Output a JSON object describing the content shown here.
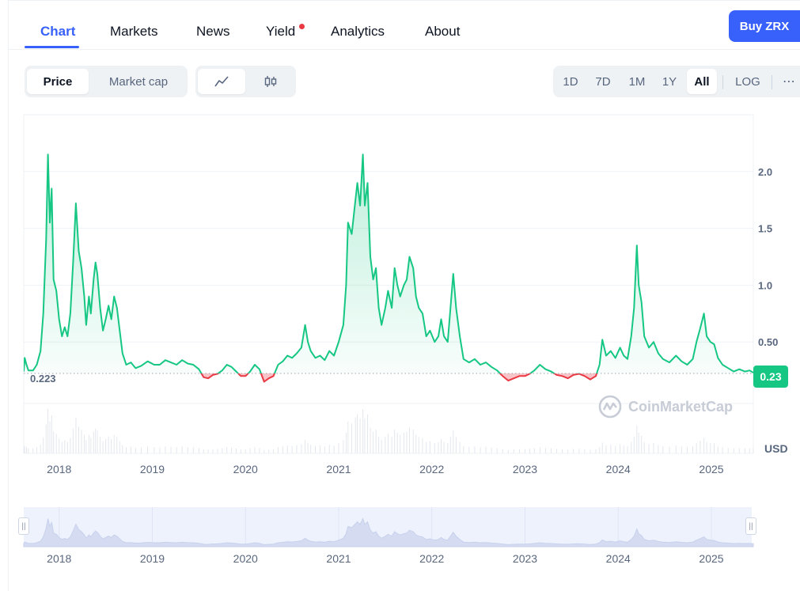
{
  "tabs": [
    {
      "label": "Chart",
      "active": true
    },
    {
      "label": "Markets"
    },
    {
      "label": "News"
    },
    {
      "label": "Yield"
    },
    {
      "label": "Analytics"
    },
    {
      "label": "About"
    }
  ],
  "buy_button": "Buy ZRX",
  "metric_toggle": {
    "options": [
      "Price",
      "Market cap"
    ],
    "selected": "Price"
  },
  "chart_style_toggle": {
    "options": [
      "line-chart-icon",
      "candlestick-icon"
    ],
    "selected": "line-chart-icon"
  },
  "range_toggle": {
    "options": [
      "1D",
      "7D",
      "1M",
      "1Y",
      "All"
    ],
    "selected": "All",
    "log_label": "LOG",
    "more": "⋯"
  },
  "colors": {
    "up": "#16c784",
    "down": "#ea3943",
    "accent": "#3861fb"
  },
  "watermark": "CoinMarketCap",
  "currency_label": "USD",
  "current_price_badge": "0.23",
  "reference_label": "0.223",
  "chart_data": {
    "type": "area",
    "series_name": "",
    "reference_value": 0.223,
    "ylim": [
      -0.48,
      2.5
    ],
    "yticks": [
      0.5,
      1.0,
      1.5,
      2.0
    ],
    "ytick_labels": [
      "0.50",
      "1.0",
      "1.5",
      "2.0"
    ],
    "xtick_labels": [
      "2018",
      "2019",
      "2020",
      "2021",
      "2022",
      "2023",
      "2024",
      "2025"
    ],
    "xlim": [
      2017.62,
      2025.45
    ],
    "grid": true,
    "points": [
      [
        2017.62,
        0.24
      ],
      [
        2017.63,
        0.36
      ],
      [
        2017.65,
        0.3
      ],
      [
        2017.67,
        0.25
      ],
      [
        2017.72,
        0.25
      ],
      [
        2017.76,
        0.3
      ],
      [
        2017.8,
        0.42
      ],
      [
        2017.83,
        0.75
      ],
      [
        2017.86,
        1.4
      ],
      [
        2017.88,
        2.15
      ],
      [
        2017.9,
        1.55
      ],
      [
        2017.92,
        1.85
      ],
      [
        2017.94,
        1.05
      ],
      [
        2017.97,
        0.95
      ],
      [
        2018.0,
        0.7
      ],
      [
        2018.03,
        0.55
      ],
      [
        2018.06,
        0.63
      ],
      [
        2018.09,
        0.55
      ],
      [
        2018.12,
        0.75
      ],
      [
        2018.15,
        1.2
      ],
      [
        2018.18,
        1.72
      ],
      [
        2018.21,
        1.3
      ],
      [
        2018.24,
        1.15
      ],
      [
        2018.27,
        0.9
      ],
      [
        2018.29,
        0.65
      ],
      [
        2018.32,
        0.9
      ],
      [
        2018.34,
        0.75
      ],
      [
        2018.37,
        1.05
      ],
      [
        2018.39,
        1.2
      ],
      [
        2018.41,
        1.1
      ],
      [
        2018.44,
        0.8
      ],
      [
        2018.47,
        0.6
      ],
      [
        2018.5,
        0.7
      ],
      [
        2018.53,
        0.82
      ],
      [
        2018.56,
        0.7
      ],
      [
        2018.59,
        0.9
      ],
      [
        2018.62,
        0.8
      ],
      [
        2018.65,
        0.6
      ],
      [
        2018.68,
        0.4
      ],
      [
        2018.72,
        0.3
      ],
      [
        2018.77,
        0.32
      ],
      [
        2018.82,
        0.27
      ],
      [
        2018.88,
        0.29
      ],
      [
        2018.95,
        0.33
      ],
      [
        2019.02,
        0.3
      ],
      [
        2019.08,
        0.3
      ],
      [
        2019.14,
        0.34
      ],
      [
        2019.2,
        0.32
      ],
      [
        2019.26,
        0.3
      ],
      [
        2019.32,
        0.34
      ],
      [
        2019.38,
        0.31
      ],
      [
        2019.44,
        0.3
      ],
      [
        2019.5,
        0.26
      ],
      [
        2019.55,
        0.19
      ],
      [
        2019.6,
        0.18
      ],
      [
        2019.65,
        0.21
      ],
      [
        2019.7,
        0.22
      ],
      [
        2019.75,
        0.25
      ],
      [
        2019.8,
        0.3
      ],
      [
        2019.85,
        0.28
      ],
      [
        2019.9,
        0.24
      ],
      [
        2019.95,
        0.2
      ],
      [
        2020.0,
        0.2
      ],
      [
        2020.05,
        0.24
      ],
      [
        2020.1,
        0.3
      ],
      [
        2020.15,
        0.26
      ],
      [
        2020.2,
        0.15
      ],
      [
        2020.25,
        0.18
      ],
      [
        2020.3,
        0.2
      ],
      [
        2020.35,
        0.3
      ],
      [
        2020.4,
        0.33
      ],
      [
        2020.45,
        0.38
      ],
      [
        2020.5,
        0.36
      ],
      [
        2020.55,
        0.4
      ],
      [
        2020.6,
        0.45
      ],
      [
        2020.64,
        0.65
      ],
      [
        2020.67,
        0.5
      ],
      [
        2020.7,
        0.42
      ],
      [
        2020.75,
        0.36
      ],
      [
        2020.8,
        0.38
      ],
      [
        2020.85,
        0.34
      ],
      [
        2020.9,
        0.42
      ],
      [
        2020.95,
        0.38
      ],
      [
        2021.0,
        0.5
      ],
      [
        2021.05,
        0.65
      ],
      [
        2021.08,
        1.0
      ],
      [
        2021.1,
        1.55
      ],
      [
        2021.14,
        1.45
      ],
      [
        2021.18,
        1.75
      ],
      [
        2021.2,
        1.9
      ],
      [
        2021.23,
        1.7
      ],
      [
        2021.26,
        2.15
      ],
      [
        2021.28,
        1.7
      ],
      [
        2021.31,
        1.9
      ],
      [
        2021.34,
        1.25
      ],
      [
        2021.37,
        1.05
      ],
      [
        2021.4,
        1.15
      ],
      [
        2021.43,
        0.8
      ],
      [
        2021.46,
        0.65
      ],
      [
        2021.5,
        0.8
      ],
      [
        2021.53,
        0.95
      ],
      [
        2021.57,
        0.8
      ],
      [
        2021.6,
        1.15
      ],
      [
        2021.63,
        1.0
      ],
      [
        2021.66,
        0.9
      ],
      [
        2021.7,
        1.0
      ],
      [
        2021.73,
        1.05
      ],
      [
        2021.76,
        1.25
      ],
      [
        2021.8,
        1.15
      ],
      [
        2021.83,
        0.9
      ],
      [
        2021.86,
        0.8
      ],
      [
        2021.9,
        0.75
      ],
      [
        2021.94,
        0.55
      ],
      [
        2021.98,
        0.6
      ],
      [
        2022.03,
        0.5
      ],
      [
        2022.07,
        0.55
      ],
      [
        2022.1,
        0.7
      ],
      [
        2022.13,
        0.55
      ],
      [
        2022.17,
        0.5
      ],
      [
        2022.2,
        0.8
      ],
      [
        2022.23,
        1.1
      ],
      [
        2022.26,
        0.8
      ],
      [
        2022.3,
        0.55
      ],
      [
        2022.34,
        0.35
      ],
      [
        2022.4,
        0.32
      ],
      [
        2022.46,
        0.35
      ],
      [
        2022.52,
        0.3
      ],
      [
        2022.58,
        0.32
      ],
      [
        2022.64,
        0.28
      ],
      [
        2022.7,
        0.25
      ],
      [
        2022.76,
        0.2
      ],
      [
        2022.82,
        0.16
      ],
      [
        2022.88,
        0.18
      ],
      [
        2022.94,
        0.2
      ],
      [
        2023.0,
        0.2
      ],
      [
        2023.05,
        0.22
      ],
      [
        2023.1,
        0.25
      ],
      [
        2023.16,
        0.3
      ],
      [
        2023.22,
        0.26
      ],
      [
        2023.28,
        0.24
      ],
      [
        2023.34,
        0.21
      ],
      [
        2023.4,
        0.2
      ],
      [
        2023.46,
        0.18
      ],
      [
        2023.52,
        0.21
      ],
      [
        2023.58,
        0.22
      ],
      [
        2023.64,
        0.2
      ],
      [
        2023.7,
        0.17
      ],
      [
        2023.76,
        0.2
      ],
      [
        2023.8,
        0.3
      ],
      [
        2023.83,
        0.52
      ],
      [
        2023.87,
        0.38
      ],
      [
        2023.92,
        0.42
      ],
      [
        2023.97,
        0.36
      ],
      [
        2024.02,
        0.45
      ],
      [
        2024.06,
        0.38
      ],
      [
        2024.1,
        0.35
      ],
      [
        2024.14,
        0.55
      ],
      [
        2024.17,
        0.8
      ],
      [
        2024.2,
        1.35
      ],
      [
        2024.22,
        1.0
      ],
      [
        2024.25,
        0.85
      ],
      [
        2024.28,
        0.55
      ],
      [
        2024.33,
        0.45
      ],
      [
        2024.38,
        0.5
      ],
      [
        2024.43,
        0.4
      ],
      [
        2024.48,
        0.35
      ],
      [
        2024.55,
        0.32
      ],
      [
        2024.62,
        0.38
      ],
      [
        2024.68,
        0.33
      ],
      [
        2024.74,
        0.3
      ],
      [
        2024.8,
        0.35
      ],
      [
        2024.84,
        0.5
      ],
      [
        2024.88,
        0.62
      ],
      [
        2024.92,
        0.75
      ],
      [
        2024.95,
        0.55
      ],
      [
        2024.99,
        0.5
      ],
      [
        2025.03,
        0.48
      ],
      [
        2025.07,
        0.36
      ],
      [
        2025.12,
        0.3
      ],
      [
        2025.18,
        0.27
      ],
      [
        2025.24,
        0.24
      ],
      [
        2025.3,
        0.26
      ],
      [
        2025.36,
        0.24
      ],
      [
        2025.41,
        0.25
      ],
      [
        2025.45,
        0.23
      ]
    ]
  }
}
